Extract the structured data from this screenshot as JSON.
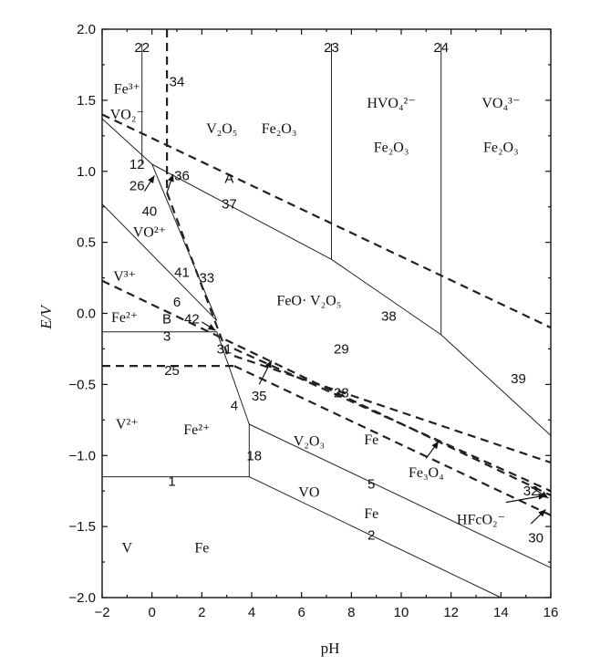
{
  "chart_data": {
    "type": "line",
    "xlabel": "pH",
    "ylabel": "E/V",
    "xlim": [
      -2,
      16
    ],
    "ylim": [
      -2.0,
      2.0
    ],
    "xticks": [
      "-2",
      "0",
      "2",
      "4",
      "6",
      "8",
      "10",
      "12",
      "14",
      "16"
    ],
    "yticks": [
      "2.0",
      "1.5",
      "1.0",
      "0.5",
      "0.0",
      "-0.5",
      "-1.0",
      "-1.5",
      "-2.0"
    ],
    "grid": false,
    "solid_lines": [
      {
        "name": "1",
        "points": [
          [
            -2,
            -1.15
          ],
          [
            3.9,
            -1.15
          ]
        ]
      },
      {
        "name": "2",
        "points": [
          [
            3.9,
            -1.15
          ],
          [
            14,
            -2.0
          ]
        ]
      },
      {
        "name": "3",
        "points": [
          [
            -2,
            -0.13
          ],
          [
            2.6,
            -0.13
          ]
        ]
      },
      {
        "name": "4",
        "points": [
          [
            2.6,
            -0.13
          ],
          [
            3.9,
            -0.78
          ]
        ]
      },
      {
        "name": "5",
        "points": [
          [
            3.9,
            -0.78
          ],
          [
            16,
            -1.79
          ]
        ]
      },
      {
        "name": "18",
        "points": [
          [
            3.9,
            -0.78
          ],
          [
            3.9,
            -1.15
          ]
        ]
      },
      {
        "name": "6",
        "points": [
          [
            -2,
            0.77
          ],
          [
            2.6,
            -0.05
          ]
        ]
      },
      {
        "name": "41",
        "points": [
          [
            0,
            1.05
          ],
          [
            2.6,
            -0.05
          ]
        ]
      },
      {
        "name": "12",
        "points": [
          [
            -2,
            1.37
          ],
          [
            0,
            1.05
          ]
        ]
      },
      {
        "name": "22",
        "points": [
          [
            -0.4,
            1.9
          ],
          [
            -0.4,
            1.05
          ]
        ]
      },
      {
        "name": "37",
        "points": [
          [
            0,
            1.05
          ],
          [
            7.2,
            0.38
          ]
        ]
      },
      {
        "name": "38",
        "points": [
          [
            7.2,
            0.38
          ],
          [
            11.6,
            -0.15
          ]
        ]
      },
      {
        "name": "39",
        "points": [
          [
            11.6,
            -0.15
          ],
          [
            16,
            -0.86
          ]
        ]
      },
      {
        "name": "23",
        "points": [
          [
            7.2,
            1.9
          ],
          [
            7.2,
            0.38
          ]
        ]
      },
      {
        "name": "24",
        "points": [
          [
            11.6,
            1.9
          ],
          [
            11.6,
            -0.15
          ]
        ]
      }
    ],
    "dashed_lines": [
      {
        "name": "34",
        "points": [
          [
            0.6,
            2.0
          ],
          [
            0.6,
            0.85
          ]
        ]
      },
      {
        "name": "33",
        "points": [
          [
            0.6,
            0.85
          ],
          [
            3.05,
            -0.3
          ]
        ]
      },
      {
        "name": "A",
        "points": [
          [
            -2,
            1.4
          ],
          [
            16,
            -0.1
          ]
        ]
      },
      {
        "name": "B",
        "points": [
          [
            -2,
            0.23
          ],
          [
            16,
            -1.28
          ]
        ]
      },
      {
        "name": "25",
        "points": [
          [
            -2,
            -0.37
          ],
          [
            3.3,
            -0.37
          ]
        ]
      },
      {
        "name": "29",
        "points": [
          [
            3.3,
            -0.25
          ],
          [
            16,
            -1.25
          ]
        ]
      },
      {
        "name": "28",
        "points": [
          [
            3.3,
            -0.37
          ],
          [
            16,
            -1.42
          ]
        ]
      },
      {
        "name": "32",
        "points": [
          [
            3.3,
            -0.3
          ],
          [
            16,
            -1.05
          ]
        ]
      }
    ],
    "annotations": [
      {
        "label": "22",
        "x": -0.4,
        "y": 1.87
      },
      {
        "label": "34",
        "x": 1.0,
        "y": 1.63
      },
      {
        "label": "23",
        "x": 7.2,
        "y": 1.87
      },
      {
        "label": "24",
        "x": 11.6,
        "y": 1.87
      },
      {
        "label": "12",
        "x": -0.6,
        "y": 1.05
      },
      {
        "label": "36",
        "x": 1.2,
        "y": 0.97
      },
      {
        "label": "A",
        "x": 3.1,
        "y": 0.95
      },
      {
        "label": "26",
        "x": -0.6,
        "y": 0.9
      },
      {
        "label": "40",
        "x": -0.1,
        "y": 0.72
      },
      {
        "label": "37",
        "x": 3.1,
        "y": 0.77
      },
      {
        "label": "41",
        "x": 1.2,
        "y": 0.29
      },
      {
        "label": "33",
        "x": 2.2,
        "y": 0.25
      },
      {
        "label": "6",
        "x": 1.0,
        "y": 0.08
      },
      {
        "label": "38",
        "x": 9.5,
        "y": -0.02
      },
      {
        "label": "B",
        "x": 0.6,
        "y": -0.04
      },
      {
        "label": "42",
        "x": 1.6,
        "y": -0.04
      },
      {
        "label": "3",
        "x": 0.6,
        "y": -0.16
      },
      {
        "label": "31",
        "x": 2.9,
        "y": -0.25
      },
      {
        "label": "29",
        "x": 7.6,
        "y": -0.25
      },
      {
        "label": "25",
        "x": 0.8,
        "y": -0.4
      },
      {
        "label": "35",
        "x": 4.3,
        "y": -0.58
      },
      {
        "label": "28",
        "x": 7.6,
        "y": -0.56
      },
      {
        "label": "4",
        "x": 3.3,
        "y": -0.65
      },
      {
        "label": "39",
        "x": 14.7,
        "y": -0.46
      },
      {
        "label": "18",
        "x": 4.1,
        "y": -1.0
      },
      {
        "label": "1",
        "x": 0.8,
        "y": -1.18
      },
      {
        "label": "5",
        "x": 8.8,
        "y": -1.2
      },
      {
        "label": "32",
        "x": 15.2,
        "y": -1.25
      },
      {
        "label": "2",
        "x": 8.8,
        "y": -1.56
      },
      {
        "label": "30",
        "x": 15.4,
        "y": -1.58
      }
    ],
    "region_labels": [
      {
        "text": "Fe³⁺",
        "x": -1.0,
        "y": 1.58
      },
      {
        "text": "VO₂⁻",
        "x": -1.0,
        "y": 1.4
      },
      {
        "text": "V₂O₅",
        "x": 2.8,
        "y": 1.3
      },
      {
        "text": "Fe₂O₃",
        "x": 5.1,
        "y": 1.3
      },
      {
        "text": "HVO₄²⁻",
        "x": 9.6,
        "y": 1.48
      },
      {
        "text": "Fe₂O₃",
        "x": 9.6,
        "y": 1.17
      },
      {
        "text": "VO₄³⁻",
        "x": 14.0,
        "y": 1.48
      },
      {
        "text": "Fe₂O₃",
        "x": 14.0,
        "y": 1.17
      },
      {
        "text": "VO²⁺",
        "x": -0.1,
        "y": 0.57
      },
      {
        "text": "V³⁺",
        "x": -1.1,
        "y": 0.26
      },
      {
        "text": "FeO· V₂O₅",
        "x": 6.3,
        "y": 0.09
      },
      {
        "text": "Fe²⁺",
        "x": -1.1,
        "y": -0.03
      },
      {
        "text": "V²⁺",
        "x": -1.0,
        "y": -0.78
      },
      {
        "text": "Fe²⁺",
        "x": 1.8,
        "y": -0.82
      },
      {
        "text": "V₂O₃",
        "x": 6.3,
        "y": -0.9
      },
      {
        "text": "Fe",
        "x": 8.8,
        "y": -0.89
      },
      {
        "text": "Fe₃O₄",
        "x": 11.0,
        "y": -1.12
      },
      {
        "text": "VO",
        "x": 6.3,
        "y": -1.26
      },
      {
        "text": "Fe",
        "x": 8.8,
        "y": -1.41
      },
      {
        "text": "HFcO₂⁻",
        "x": 13.2,
        "y": -1.45
      },
      {
        "text": "V",
        "x": -1.0,
        "y": -1.65
      },
      {
        "text": "Fe",
        "x": 2.0,
        "y": -1.65
      }
    ],
    "arrows": [
      {
        "from": [
          -0.3,
          0.86
        ],
        "to": [
          0.1,
          0.97
        ]
      },
      {
        "from": [
          0.6,
          0.85
        ],
        "to": [
          0.85,
          0.98
        ]
      },
      {
        "from": [
          2.0,
          -0.06
        ],
        "to": [
          2.55,
          -0.12
        ]
      },
      {
        "from": [
          4.3,
          -0.5
        ],
        "to": [
          4.8,
          -0.33
        ]
      },
      {
        "from": [
          11.0,
          -1.02
        ],
        "to": [
          11.5,
          -0.9
        ]
      },
      {
        "from": [
          14.2,
          -1.33
        ],
        "to": [
          15.8,
          -1.28
        ]
      },
      {
        "from": [
          15.2,
          -1.48
        ],
        "to": [
          15.8,
          -1.38
        ]
      },
      {
        "from": [
          15.2,
          -1.22
        ],
        "to": [
          15.9,
          -1.3
        ]
      }
    ]
  }
}
